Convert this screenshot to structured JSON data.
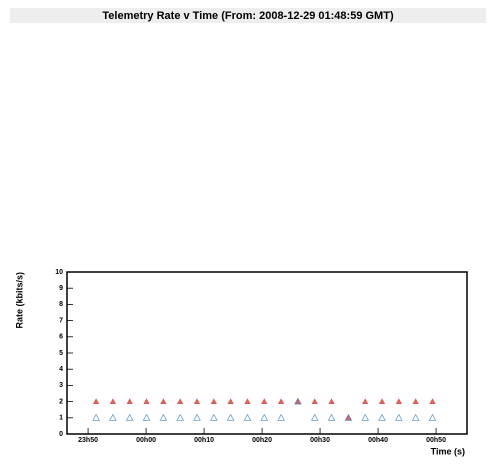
{
  "chart_data": {
    "type": "scatter",
    "title": "Telemetry Rate v Time (From: 2008-12-29 01:48:59 GMT)",
    "x_label": "Time (s)",
    "y_label": "Rate (kbits/s)",
    "xlim": [
      -818,
      3320
    ],
    "ylim": [
      0,
      10
    ],
    "xticks": [
      {
        "value": -600,
        "label": "23h50"
      },
      {
        "value": 0,
        "label": "00h00"
      },
      {
        "value": 600,
        "label": "00h10"
      },
      {
        "value": 1200,
        "label": "00h20"
      },
      {
        "value": 1800,
        "label": "00h30"
      },
      {
        "value": 2400,
        "label": "00h40"
      },
      {
        "value": 3000,
        "label": "00h50"
      }
    ],
    "yticks": [
      0,
      1,
      2,
      3,
      4,
      5,
      6,
      7,
      8,
      9,
      10
    ],
    "series": [
      {
        "color": "#d0453a",
        "marker": "filled-triangle",
        "x": [
          -517,
          -343,
          -169,
          5,
          179,
          353,
          527,
          701,
          875,
          1049,
          1223,
          1397,
          1571,
          1745,
          1919,
          2093,
          2267,
          2441,
          2615,
          2789,
          2963
        ],
        "values": [
          2,
          2,
          2,
          2,
          2,
          2,
          2,
          2,
          2,
          2,
          2,
          2,
          2,
          2,
          2,
          1,
          2,
          2,
          2,
          2,
          2
        ]
      },
      {
        "color": "#3f86c4",
        "marker": "open-triangle",
        "x": [
          -517,
          -343,
          -169,
          5,
          179,
          353,
          527,
          701,
          875,
          1049,
          1223,
          1397,
          1571,
          1745,
          1919,
          2093,
          2267,
          2441,
          2615,
          2789,
          2963
        ],
        "values": [
          1,
          1,
          1,
          1,
          1,
          1,
          1,
          1,
          1,
          1,
          1,
          1,
          2,
          1,
          1,
          1,
          1,
          1,
          1,
          1,
          1
        ]
      }
    ]
  }
}
